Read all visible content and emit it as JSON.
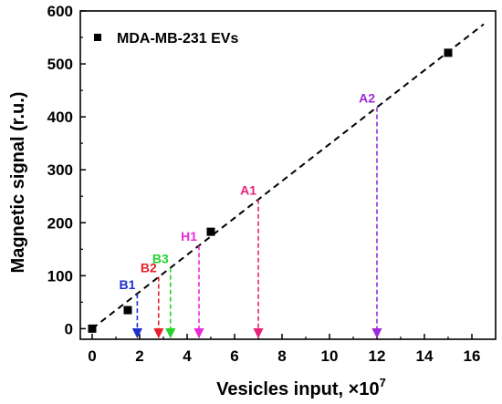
{
  "chart_data": {
    "type": "scatter",
    "xlabel": "Vesicles input, ×10",
    "xlabel_exponent": "7",
    "ylabel": "Magnetic signal (r.u.)",
    "xlim": [
      -0.5,
      17
    ],
    "ylim": [
      -20,
      600
    ],
    "x_ticks": [
      0,
      2,
      4,
      6,
      8,
      10,
      12,
      14,
      16
    ],
    "y_ticks": [
      0,
      100,
      200,
      300,
      400,
      500,
      600
    ],
    "legend": {
      "label": "MDA-MB-231 EVs",
      "placement": "top-left"
    },
    "series": [
      {
        "name": "MDA-MB-231 EVs",
        "marker": "square",
        "color": "#000000",
        "x": [
          0,
          1.5,
          5,
          15
        ],
        "y": [
          0,
          35,
          183,
          521
        ]
      }
    ],
    "fit_line": {
      "style": "dashed",
      "color": "#000000",
      "x": [
        0,
        16.5
      ],
      "y": [
        0,
        575
      ]
    },
    "annotations": [
      {
        "label": "B1",
        "x": 1.9,
        "y": 66,
        "color": "#1f2fd0"
      },
      {
        "label": "B2",
        "x": 2.8,
        "y": 98,
        "color": "#e8202a"
      },
      {
        "label": "B3",
        "x": 3.3,
        "y": 115,
        "color": "#22d42a"
      },
      {
        "label": "H1",
        "x": 4.5,
        "y": 157,
        "color": "#e82ad8"
      },
      {
        "label": "A1",
        "x": 7.0,
        "y": 244,
        "color": "#e8207a"
      },
      {
        "label": "A2",
        "x": 12.0,
        "y": 418,
        "color": "#9c2ad8"
      }
    ]
  }
}
